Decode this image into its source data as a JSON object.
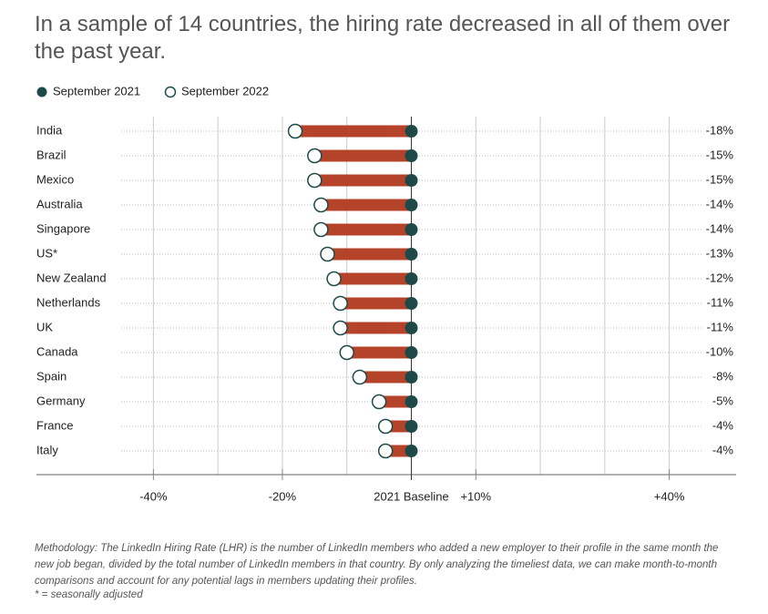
{
  "chart_data": {
    "type": "dumbbell",
    "title": "In a sample of 14 countries, the hiring rate decreased in all of them over the past year.",
    "categories": [
      "India",
      "Brazil",
      "Mexico",
      "Australia",
      "Singapore",
      "US*",
      "New Zealand",
      "Netherlands",
      "UK",
      "Canada",
      "Spain",
      "Germany",
      "France",
      "Italy"
    ],
    "series": [
      {
        "name": "September 2021",
        "color": "#1d4a48",
        "values": [
          0,
          0,
          0,
          0,
          0,
          0,
          0,
          0,
          0,
          0,
          0,
          0,
          0,
          0
        ]
      },
      {
        "name": "September 2022",
        "color": "#ffffff",
        "values": [
          -18,
          -15,
          -15,
          -14,
          -14,
          -13,
          -12,
          -11,
          -11,
          -10,
          -8,
          -5,
          -4,
          -4
        ],
        "value_labels": [
          "-18%",
          "-15%",
          "-15%",
          "-14%",
          "-14%",
          "-13%",
          "-12%",
          "-11%",
          "-11%",
          "-10%",
          "-8%",
          "-5%",
          "-4%",
          "-4%"
        ]
      }
    ],
    "bar_color": "#b5432a",
    "xlim": [
      -45,
      45
    ],
    "xticks": [
      {
        "value": -40,
        "label": "-40%"
      },
      {
        "value": -20,
        "label": "-20%"
      },
      {
        "value": 0,
        "label": "2021 Baseline"
      },
      {
        "value": 10,
        "label": "+10%"
      },
      {
        "value": 40,
        "label": "+40%"
      }
    ],
    "xgrid": [
      -40,
      -30,
      -20,
      -10,
      10,
      20,
      30,
      40
    ],
    "grid": true,
    "legend": "top-left",
    "methodology": "Methodology: The LinkedIn Hiring Rate (LHR) is the number of LinkedIn members who added a new employer to their profile in the same month the new job began, divided by the total number of LinkedIn members in that country.  By only analyzing the timeliest data, we can make month-to-month comparisons and account for any potential lags in members updating their profiles.",
    "footnote": "* = seasonally adjusted"
  }
}
